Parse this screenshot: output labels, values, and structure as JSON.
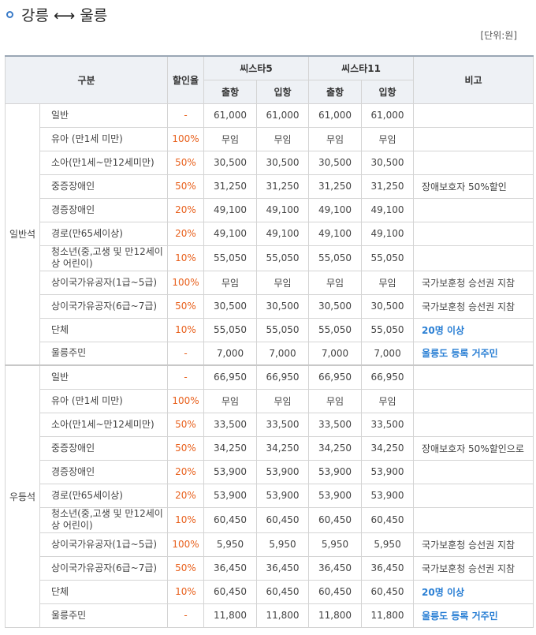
{
  "title": {
    "origin": "강릉",
    "arrow": "⟷",
    "destination": "울릉",
    "unit": "[단위:원]"
  },
  "headers": {
    "category": "구분",
    "discount": "할인율",
    "ship1": "씨스타5",
    "ship2": "씨스타11",
    "note": "비고",
    "departure": "출항",
    "arrival": "입항"
  },
  "sections": [
    {
      "group": "일반석",
      "rows": [
        {
          "category": "일반",
          "rate": "-",
          "v": [
            "61,000",
            "61,000",
            "61,000",
            "61,000"
          ],
          "note": "",
          "hl": false
        },
        {
          "category": "유아 (만1세 미만)",
          "rate": "100%",
          "v": [
            "무임",
            "무임",
            "무임",
            "무임"
          ],
          "note": "",
          "hl": false
        },
        {
          "category": "소아(만1세~만12세미만)",
          "rate": "50%",
          "v": [
            "30,500",
            "30,500",
            "30,500",
            "30,500"
          ],
          "note": "",
          "hl": false
        },
        {
          "category": "중증장애인",
          "rate": "50%",
          "v": [
            "31,250",
            "31,250",
            "31,250",
            "31,250"
          ],
          "note": "장애보호자 50%할인",
          "hl": false
        },
        {
          "category": "경증장애인",
          "rate": "20%",
          "v": [
            "49,100",
            "49,100",
            "49,100",
            "49,100"
          ],
          "note": "",
          "hl": false
        },
        {
          "category": "경로(만65세이상)",
          "rate": "20%",
          "v": [
            "49,100",
            "49,100",
            "49,100",
            "49,100"
          ],
          "note": "",
          "hl": false
        },
        {
          "category": "청소년(중,고생 및 만12세이상 어린이)",
          "rate": "10%",
          "v": [
            "55,050",
            "55,050",
            "55,050",
            "55,050"
          ],
          "note": "",
          "hl": false,
          "tall": true
        },
        {
          "category": "상이국가유공자(1급~5급)",
          "rate": "100%",
          "v": [
            "무임",
            "무임",
            "무임",
            "무임"
          ],
          "note": "국가보훈청 승선권 지참",
          "hl": false
        },
        {
          "category": "상이국가유공자(6급~7급)",
          "rate": "50%",
          "v": [
            "30,500",
            "30,500",
            "30,500",
            "30,500"
          ],
          "note": "국가보훈청 승선권 지참",
          "hl": false
        },
        {
          "category": "단체",
          "rate": "10%",
          "v": [
            "55,050",
            "55,050",
            "55,050",
            "55,050"
          ],
          "note": "20명 이상",
          "hl": true
        },
        {
          "category": "울릉주민",
          "rate": "-",
          "v": [
            "7,000",
            "7,000",
            "7,000",
            "7,000"
          ],
          "note": "울릉도 등록 거주민",
          "hl": true
        }
      ]
    },
    {
      "group": "우등석",
      "rows": [
        {
          "category": "일반",
          "rate": "-",
          "v": [
            "66,950",
            "66,950",
            "66,950",
            "66,950"
          ],
          "note": "",
          "hl": false
        },
        {
          "category": "유아 (만1세 미만)",
          "rate": "100%",
          "v": [
            "무임",
            "무임",
            "무임",
            "무임"
          ],
          "note": "",
          "hl": false
        },
        {
          "category": "소아(만1세~만12세미만)",
          "rate": "50%",
          "v": [
            "33,500",
            "33,500",
            "33,500",
            "33,500"
          ],
          "note": "",
          "hl": false
        },
        {
          "category": "중증장애인",
          "rate": "50%",
          "v": [
            "34,250",
            "34,250",
            "34,250",
            "34,250"
          ],
          "note": "장애보호자 50%할인으로",
          "hl": false
        },
        {
          "category": "경증장애인",
          "rate": "20%",
          "v": [
            "53,900",
            "53,900",
            "53,900",
            "53,900"
          ],
          "note": "",
          "hl": false
        },
        {
          "category": "경로(만65세이상)",
          "rate": "20%",
          "v": [
            "53,900",
            "53,900",
            "53,900",
            "53,900"
          ],
          "note": "",
          "hl": false
        },
        {
          "category": "청소년(중,고생 및 만12세이상 어린이)",
          "rate": "10%",
          "v": [
            "60,450",
            "60,450",
            "60,450",
            "60,450"
          ],
          "note": "",
          "hl": false,
          "tall": true
        },
        {
          "category": "상이국가유공자(1급~5급)",
          "rate": "100%",
          "v": [
            "5,950",
            "5,950",
            "5,950",
            "5,950"
          ],
          "note": "국가보훈청 승선권 지참",
          "hl": false
        },
        {
          "category": "상이국가유공자(6급~7급)",
          "rate": "50%",
          "v": [
            "36,450",
            "36,450",
            "36,450",
            "36,450"
          ],
          "note": "국가보훈청 승선권 지참",
          "hl": false
        },
        {
          "category": "단체",
          "rate": "10%",
          "v": [
            "60,450",
            "60,450",
            "60,450",
            "60,450"
          ],
          "note": "20명 이상",
          "hl": true
        },
        {
          "category": "울릉주민",
          "rate": "-",
          "v": [
            "11,800",
            "11,800",
            "11,800",
            "11,800"
          ],
          "note": "울릉도 등록 거주민",
          "hl": true
        }
      ]
    }
  ]
}
